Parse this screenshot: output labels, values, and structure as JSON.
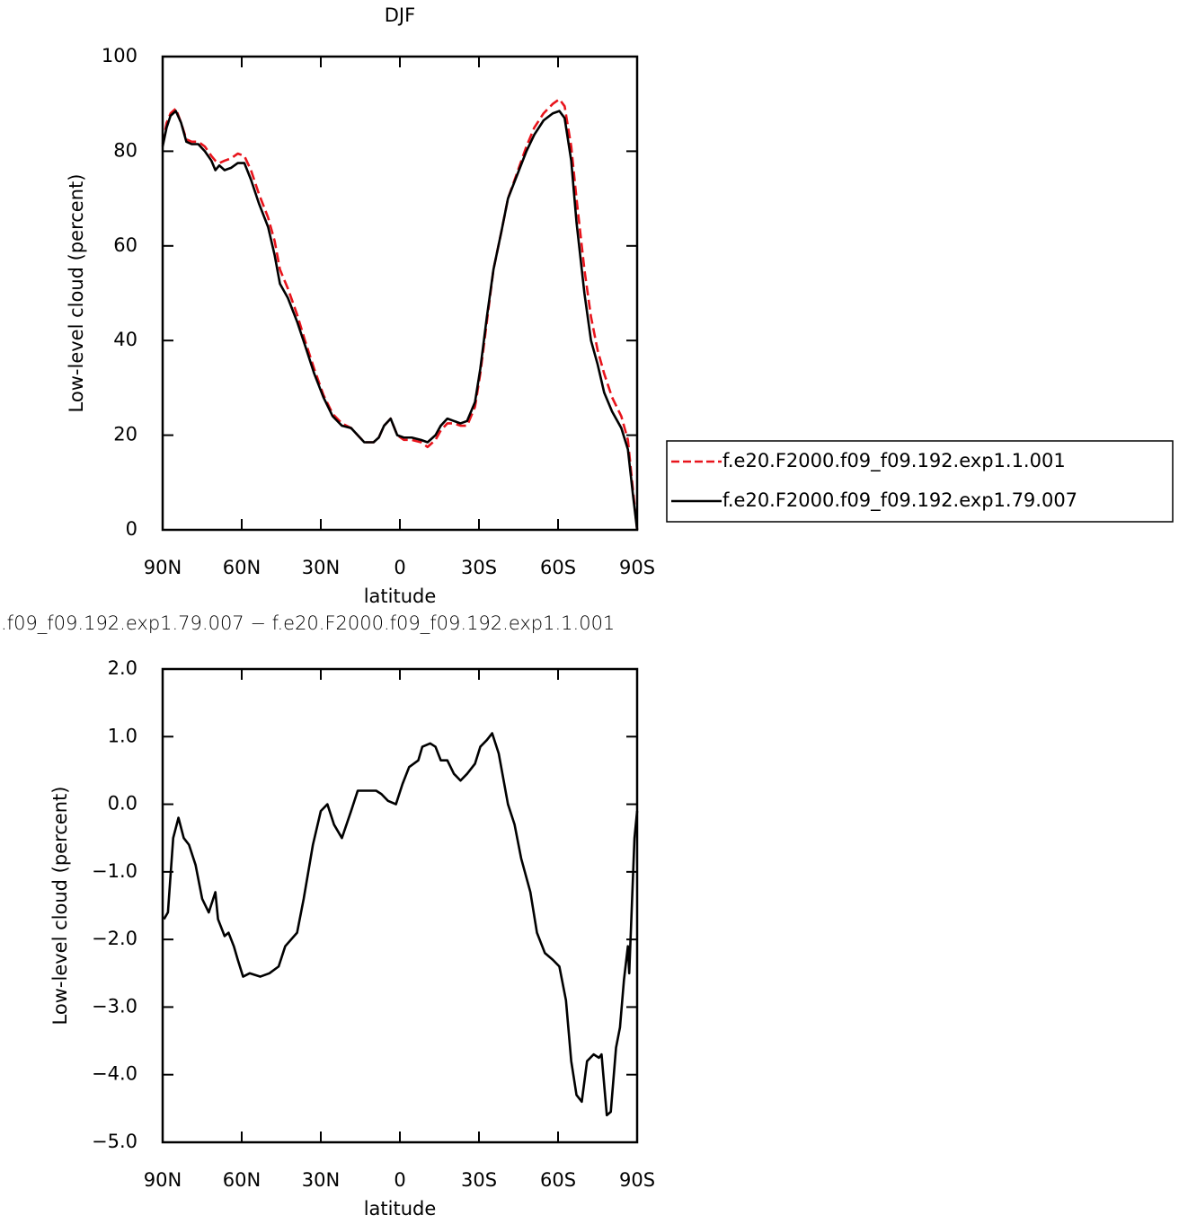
{
  "chart_data": [
    {
      "type": "line",
      "title": "DJF",
      "xlabel": "latitude",
      "ylabel": "Low-level cloud (percent)",
      "xlim": [
        90,
        -90
      ],
      "xticks": [
        {
          "value": 90,
          "label": "90N"
        },
        {
          "value": 60,
          "label": "60N"
        },
        {
          "value": 30,
          "label": "30N"
        },
        0,
        {
          "value": -30,
          "label": "30S"
        },
        {
          "value": -60,
          "label": "60S"
        },
        {
          "value": -90,
          "label": "90S"
        }
      ],
      "ylim": [
        0,
        100
      ],
      "yticks": [
        0,
        20,
        40,
        60,
        80,
        100
      ],
      "legend": "right",
      "x": [
        90,
        88.5,
        87,
        85,
        83,
        81,
        79,
        76.5,
        74,
        71.5,
        70,
        68.5,
        66.5,
        64,
        61.5,
        59,
        56.5,
        53.5,
        50,
        47.5,
        45.5,
        42.5,
        39,
        36,
        32.5,
        29,
        25.5,
        22,
        18.5,
        16,
        13.5,
        10,
        8,
        6,
        3.5,
        1,
        -1.5,
        -4.5,
        -8,
        -10.5,
        -13.5,
        -15.5,
        -18,
        -20.5,
        -23,
        -25.5,
        -28.5,
        -30.5,
        -33,
        -35.5,
        -38.5,
        -41,
        -44.5,
        -48,
        -51,
        -54.5,
        -58,
        -60.5,
        -62.5,
        -65,
        -67,
        -70,
        -72.5,
        -75,
        -77.5,
        -80.5,
        -84,
        -86.5,
        -88.5,
        -90
      ],
      "series": [
        {
          "name": "f.e20.F2000.f09_f09.192.exp1.1.001",
          "color": "#e8141c",
          "style": "dashed",
          "values": [
            81.5,
            86,
            88,
            89,
            86,
            82.5,
            82,
            82,
            81,
            79,
            78,
            77.5,
            78,
            78.5,
            79.5,
            79,
            76,
            71,
            66,
            61,
            55,
            51,
            45.5,
            40,
            34,
            28.5,
            24.5,
            22.5,
            21.5,
            20,
            18.5,
            18.5,
            19.5,
            22,
            23.5,
            20,
            19,
            19,
            18.5,
            17.5,
            19,
            21,
            22.5,
            22.5,
            22,
            22,
            26,
            33,
            44,
            55,
            63,
            70,
            75.5,
            81,
            85,
            88,
            90,
            91,
            89.5,
            81,
            70,
            55,
            45,
            38,
            33,
            28,
            24,
            19,
            8,
            0
          ]
        },
        {
          "name": "f.e20.F2000.f09_f09.192.exp1.79.007",
          "color": "#000000",
          "style": "solid",
          "values": [
            81,
            85,
            87.5,
            88.5,
            86,
            82,
            81.5,
            81.5,
            80,
            78,
            76,
            77,
            76,
            76.5,
            77.5,
            77.5,
            74,
            69,
            64,
            58,
            52,
            49,
            44,
            39,
            33,
            28,
            24,
            22,
            21.5,
            20,
            18.5,
            18.5,
            19.5,
            22,
            23.5,
            20,
            19.5,
            19.5,
            19,
            18.5,
            20,
            22,
            23.5,
            23,
            22.5,
            23,
            27,
            34,
            45,
            55,
            63,
            70,
            75,
            80,
            83.5,
            86.5,
            88,
            88.5,
            87,
            78,
            65,
            50,
            40,
            35,
            29,
            25,
            21.5,
            17,
            7,
            0
          ]
        }
      ]
    },
    {
      "type": "line",
      "title": ".f09_f09.192.exp1.79.007 − f.e20.F2000.f09_f09.192.exp1.1.001",
      "xlabel": "latitude",
      "ylabel": "Low-level cloud (percent)",
      "xlim": [
        90,
        -90
      ],
      "xticks": [
        {
          "value": 90,
          "label": "90N"
        },
        {
          "value": 60,
          "label": "60N"
        },
        {
          "value": 30,
          "label": "30N"
        },
        0,
        {
          "value": -30,
          "label": "30S"
        },
        {
          "value": -60,
          "label": "60S"
        },
        {
          "value": -90,
          "label": "90S"
        }
      ],
      "ylim": [
        -5,
        2
      ],
      "yticks": [
        {
          "value": -5,
          "label": "−5.0"
        },
        {
          "value": -4,
          "label": "−4.0"
        },
        {
          "value": -3,
          "label": "−3.0"
        },
        {
          "value": -2,
          "label": "−2.0"
        },
        {
          "value": -1,
          "label": "−1.0"
        },
        {
          "value": 0,
          "label": "0.0"
        },
        {
          "value": 1,
          "label": "1.0"
        },
        {
          "value": 2,
          "label": "2.0"
        }
      ],
      "color": "#000000",
      "x": [
        89.5,
        88,
        86,
        84,
        82,
        80,
        77.5,
        75,
        72.5,
        70,
        69,
        66.5,
        65,
        63,
        61.5,
        59.5,
        57,
        53,
        49.5,
        46,
        43.5,
        39,
        36.5,
        33,
        30,
        27.5,
        25,
        22,
        18.5,
        16,
        12.5,
        9,
        7,
        4.5,
        1.5,
        -1,
        -3.5,
        -7,
        -8.5,
        -11.5,
        -13.5,
        -15.5,
        -18,
        -20.5,
        -23,
        -25.5,
        -28.5,
        -30.5,
        -33,
        -35,
        -37.5,
        -41,
        -43.5,
        -46,
        -49.5,
        -52,
        -55,
        -58,
        -60.5,
        -63,
        -65,
        -67,
        -69,
        -71,
        -73.5,
        -75.5,
        -76.5,
        -78.5,
        -80,
        -82,
        -83.5,
        -85,
        -86.5,
        -87,
        -88,
        -89,
        -90
      ],
      "values": [
        -1.7,
        -1.6,
        -0.5,
        -0.2,
        -0.5,
        -0.6,
        -0.9,
        -1.4,
        -1.6,
        -1.3,
        -1.7,
        -1.95,
        -1.9,
        -2.1,
        -2.3,
        -2.55,
        -2.5,
        -2.55,
        -2.5,
        -2.4,
        -2.1,
        -1.9,
        -1.4,
        -0.6,
        -0.1,
        0,
        -0.3,
        -0.5,
        -0.1,
        0.2,
        0.2,
        0.2,
        0.15,
        0.05,
        0,
        0.3,
        0.55,
        0.65,
        0.85,
        0.9,
        0.85,
        0.65,
        0.65,
        0.45,
        0.35,
        0.45,
        0.6,
        0.85,
        0.95,
        1.05,
        0.75,
        0,
        -0.3,
        -0.8,
        -1.3,
        -1.9,
        -2.2,
        -2.3,
        -2.4,
        -2.9,
        -3.8,
        -4.3,
        -4.4,
        -3.8,
        -3.7,
        -3.75,
        -3.7,
        -4.6,
        -4.55,
        -3.6,
        -3.3,
        -2.6,
        -2.1,
        -2.5,
        -1.5,
        -0.5,
        -0.1
      ]
    }
  ]
}
